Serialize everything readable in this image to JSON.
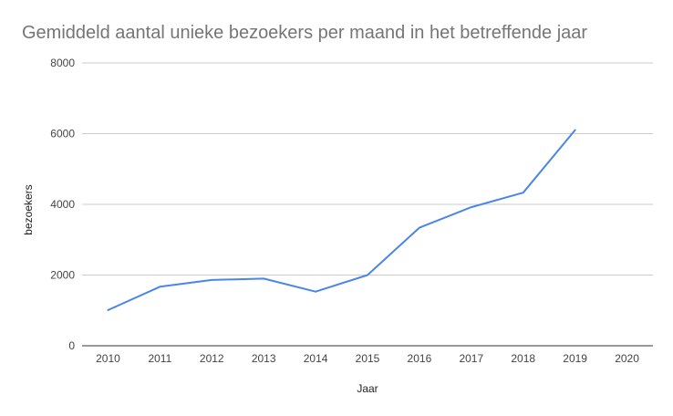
{
  "chart_data": {
    "type": "line",
    "title": "Gemiddeld aantal unieke bezoekers per maand in het betreffende jaar",
    "xlabel": "Jaar",
    "ylabel": "bezoekers",
    "categories": [
      "2010",
      "2011",
      "2012",
      "2013",
      "2014",
      "2015",
      "2016",
      "2017",
      "2018",
      "2019",
      "2020"
    ],
    "series": [
      {
        "values": [
          1010,
          1670,
          1860,
          1900,
          1530,
          2000,
          3340,
          3920,
          4330,
          6100,
          null
        ]
      }
    ],
    "ylim": [
      0,
      8000
    ],
    "yticks": [
      0,
      2000,
      4000,
      6000,
      8000
    ],
    "grid": true,
    "legend": "none",
    "colors": {
      "series": "#4a86e8",
      "grid": "#cccccc",
      "title": "#757575"
    }
  }
}
